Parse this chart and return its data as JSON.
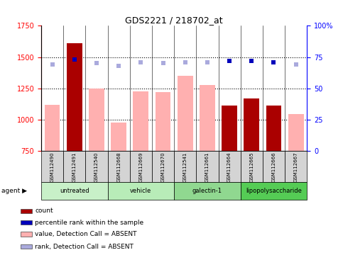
{
  "title": "GDS2221 / 218702_at",
  "samples": [
    "GSM112490",
    "GSM112491",
    "GSM112540",
    "GSM112668",
    "GSM112669",
    "GSM112670",
    "GSM112541",
    "GSM112661",
    "GSM112664",
    "GSM112665",
    "GSM112666",
    "GSM112667"
  ],
  "bar_values": [
    1120,
    1610,
    1250,
    975,
    1225,
    1220,
    1350,
    1275,
    1115,
    1170,
    1115,
    1045
  ],
  "bar_is_dark": [
    false,
    true,
    false,
    false,
    false,
    false,
    false,
    false,
    true,
    true,
    true,
    false
  ],
  "percentile_rank": [
    69,
    73,
    70,
    68,
    71,
    70,
    71,
    71,
    72,
    72,
    71,
    69
  ],
  "rank_absent": [
    69,
    null,
    70,
    68,
    71,
    70,
    71,
    71,
    null,
    null,
    null,
    69
  ],
  "ylim_left": [
    750,
    1750
  ],
  "ylim_right": [
    0,
    100
  ],
  "yticks_left": [
    750,
    1000,
    1250,
    1500,
    1750
  ],
  "yticks_right": [
    0,
    25,
    50,
    75,
    100
  ],
  "agent_groups": [
    {
      "label": "untreated",
      "start": 0,
      "end": 3,
      "color": "#c8f0c8"
    },
    {
      "label": "vehicle",
      "start": 3,
      "end": 6,
      "color": "#b8ecb8"
    },
    {
      "label": "galectin-1",
      "start": 6,
      "end": 9,
      "color": "#90d890"
    },
    {
      "label": "lipopolysaccharide",
      "start": 9,
      "end": 12,
      "color": "#55cc55"
    }
  ],
  "dark_bar_color": "#aa0000",
  "light_bar_color": "#ffb0b0",
  "dark_dot_color": "#0000bb",
  "light_dot_color": "#aaaadd",
  "bar_width": 0.7,
  "legend_items": [
    {
      "color": "#aa0000",
      "label": "count"
    },
    {
      "color": "#0000bb",
      "label": "percentile rank within the sample"
    },
    {
      "color": "#ffb0b0",
      "label": "value, Detection Call = ABSENT"
    },
    {
      "color": "#aaaadd",
      "label": "rank, Detection Call = ABSENT"
    }
  ]
}
